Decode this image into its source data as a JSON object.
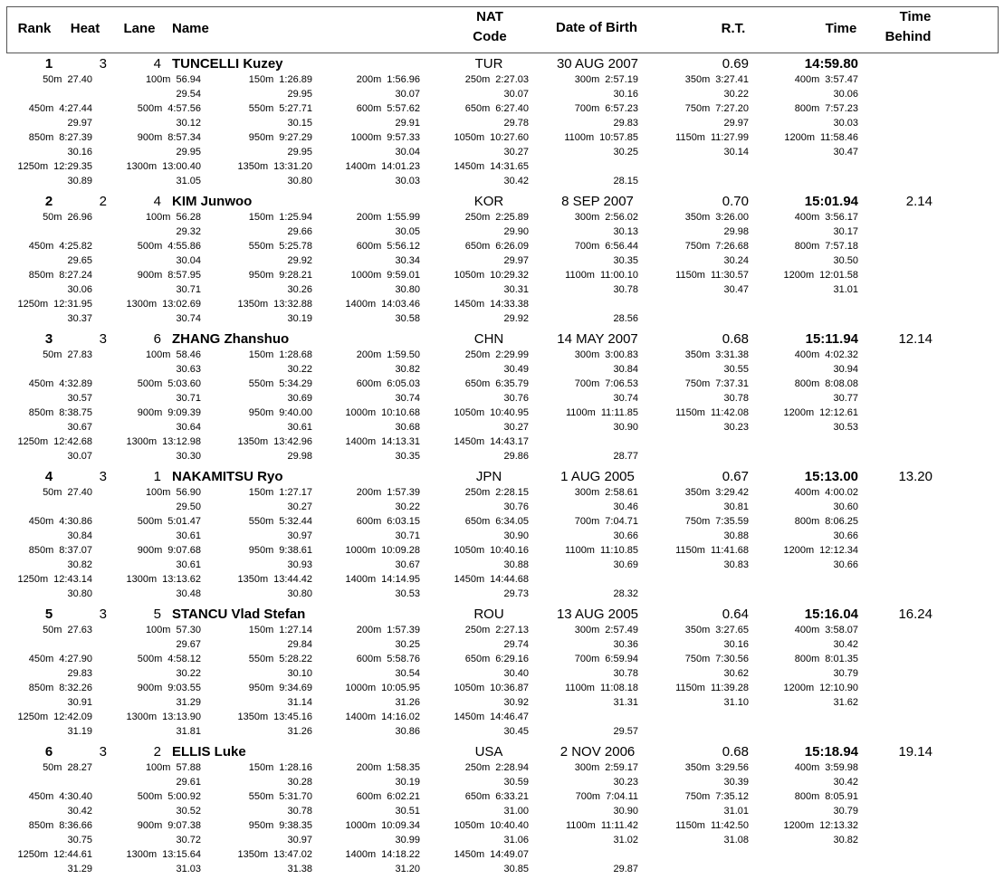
{
  "header": {
    "rank": "Rank",
    "heat": "Heat",
    "lane": "Lane",
    "name": "Name",
    "nat": [
      "NAT",
      "Code"
    ],
    "dob": "Date of Birth",
    "rt": "R.T.",
    "time": "Time",
    "behind": [
      "Time",
      "Behind"
    ]
  },
  "results": [
    {
      "rank": "1",
      "heat": "3",
      "lane": "4",
      "name": "TUNCELLI Kuzey",
      "nat": "TUR",
      "dob": "30 AUG 2007",
      "rt": "0.69",
      "time": "14:59.80",
      "splits": [
        [
          "50m",
          "27.40"
        ],
        [
          "100m",
          "56.94",
          "29.54"
        ],
        [
          "150m",
          "1:26.89",
          "29.95"
        ],
        [
          "200m",
          "1:56.96",
          "30.07"
        ],
        [
          "250m",
          "2:27.03",
          "30.07"
        ],
        [
          "300m",
          "2:57.19",
          "30.16"
        ],
        [
          "350m",
          "3:27.41",
          "30.22"
        ],
        [
          "400m",
          "3:57.47",
          "30.06"
        ],
        [
          "450m",
          "4:27.44",
          "29.97"
        ],
        [
          "500m",
          "4:57.56",
          "30.12"
        ],
        [
          "550m",
          "5:27.71",
          "30.15"
        ],
        [
          "600m",
          "5:57.62",
          "29.91"
        ],
        [
          "650m",
          "6:27.40",
          "29.78"
        ],
        [
          "700m",
          "6:57.23",
          "29.83"
        ],
        [
          "750m",
          "7:27.20",
          "29.97"
        ],
        [
          "800m",
          "7:57.23",
          "30.03"
        ],
        [
          "850m",
          "8:27.39",
          "30.16"
        ],
        [
          "900m",
          "8:57.34",
          "29.95"
        ],
        [
          "950m",
          "9:27.29",
          "29.95"
        ],
        [
          "1000m",
          "9:57.33",
          "30.04"
        ],
        [
          "1050m",
          "10:27.60",
          "30.27"
        ],
        [
          "1100m",
          "10:57.85",
          "30.25"
        ],
        [
          "1150m",
          "11:27.99",
          "30.14"
        ],
        [
          "1200m",
          "11:58.46",
          "30.47"
        ],
        [
          "1250m",
          "12:29.35",
          "30.89"
        ],
        [
          "1300m",
          "13:00.40",
          "31.05"
        ],
        [
          "1350m",
          "13:31.20",
          "30.80"
        ],
        [
          "1400m",
          "14:01.23",
          "30.03"
        ],
        [
          "1450m",
          "14:31.65",
          "30.42"
        ]
      ],
      "final_split": "28.15"
    },
    {
      "rank": "2",
      "heat": "2",
      "lane": "4",
      "name": "KIM Junwoo",
      "nat": "KOR",
      "dob": "8 SEP 2007",
      "rt": "0.70",
      "time": "15:01.94",
      "behind": "2.14",
      "splits": [
        [
          "50m",
          "26.96"
        ],
        [
          "100m",
          "56.28",
          "29.32"
        ],
        [
          "150m",
          "1:25.94",
          "29.66"
        ],
        [
          "200m",
          "1:55.99",
          "30.05"
        ],
        [
          "250m",
          "2:25.89",
          "29.90"
        ],
        [
          "300m",
          "2:56.02",
          "30.13"
        ],
        [
          "350m",
          "3:26.00",
          "29.98"
        ],
        [
          "400m",
          "3:56.17",
          "30.17"
        ],
        [
          "450m",
          "4:25.82",
          "29.65"
        ],
        [
          "500m",
          "4:55.86",
          "30.04"
        ],
        [
          "550m",
          "5:25.78",
          "29.92"
        ],
        [
          "600m",
          "5:56.12",
          "30.34"
        ],
        [
          "650m",
          "6:26.09",
          "29.97"
        ],
        [
          "700m",
          "6:56.44",
          "30.35"
        ],
        [
          "750m",
          "7:26.68",
          "30.24"
        ],
        [
          "800m",
          "7:57.18",
          "30.50"
        ],
        [
          "850m",
          "8:27.24",
          "30.06"
        ],
        [
          "900m",
          "8:57.95",
          "30.71"
        ],
        [
          "950m",
          "9:28.21",
          "30.26"
        ],
        [
          "1000m",
          "9:59.01",
          "30.80"
        ],
        [
          "1050m",
          "10:29.32",
          "30.31"
        ],
        [
          "1100m",
          "11:00.10",
          "30.78"
        ],
        [
          "1150m",
          "11:30.57",
          "30.47"
        ],
        [
          "1200m",
          "12:01.58",
          "31.01"
        ],
        [
          "1250m",
          "12:31.95",
          "30.37"
        ],
        [
          "1300m",
          "13:02.69",
          "30.74"
        ],
        [
          "1350m",
          "13:32.88",
          "30.19"
        ],
        [
          "1400m",
          "14:03.46",
          "30.58"
        ],
        [
          "1450m",
          "14:33.38",
          "29.92"
        ]
      ],
      "final_split": "28.56"
    },
    {
      "rank": "3",
      "heat": "3",
      "lane": "6",
      "name": "ZHANG Zhanshuo",
      "nat": "CHN",
      "dob": "14 MAY 2007",
      "rt": "0.68",
      "time": "15:11.94",
      "behind": "12.14",
      "splits": [
        [
          "50m",
          "27.83"
        ],
        [
          "100m",
          "58.46",
          "30.63"
        ],
        [
          "150m",
          "1:28.68",
          "30.22"
        ],
        [
          "200m",
          "1:59.50",
          "30.82"
        ],
        [
          "250m",
          "2:29.99",
          "30.49"
        ],
        [
          "300m",
          "3:00.83",
          "30.84"
        ],
        [
          "350m",
          "3:31.38",
          "30.55"
        ],
        [
          "400m",
          "4:02.32",
          "30.94"
        ],
        [
          "450m",
          "4:32.89",
          "30.57"
        ],
        [
          "500m",
          "5:03.60",
          "30.71"
        ],
        [
          "550m",
          "5:34.29",
          "30.69"
        ],
        [
          "600m",
          "6:05.03",
          "30.74"
        ],
        [
          "650m",
          "6:35.79",
          "30.76"
        ],
        [
          "700m",
          "7:06.53",
          "30.74"
        ],
        [
          "750m",
          "7:37.31",
          "30.78"
        ],
        [
          "800m",
          "8:08.08",
          "30.77"
        ],
        [
          "850m",
          "8:38.75",
          "30.67"
        ],
        [
          "900m",
          "9:09.39",
          "30.64"
        ],
        [
          "950m",
          "9:40.00",
          "30.61"
        ],
        [
          "1000m",
          "10:10.68",
          "30.68"
        ],
        [
          "1050m",
          "10:40.95",
          "30.27"
        ],
        [
          "1100m",
          "11:11.85",
          "30.90"
        ],
        [
          "1150m",
          "11:42.08",
          "30.23"
        ],
        [
          "1200m",
          "12:12.61",
          "30.53"
        ],
        [
          "1250m",
          "12:42.68",
          "30.07"
        ],
        [
          "1300m",
          "13:12.98",
          "30.30"
        ],
        [
          "1350m",
          "13:42.96",
          "29.98"
        ],
        [
          "1400m",
          "14:13.31",
          "30.35"
        ],
        [
          "1450m",
          "14:43.17",
          "29.86"
        ]
      ],
      "final_split": "28.77"
    },
    {
      "rank": "4",
      "heat": "3",
      "lane": "1",
      "name": "NAKAMITSU Ryo",
      "nat": "JPN",
      "dob": "1 AUG 2005",
      "rt": "0.67",
      "time": "15:13.00",
      "behind": "13.20",
      "splits": [
        [
          "50m",
          "27.40"
        ],
        [
          "100m",
          "56.90",
          "29.50"
        ],
        [
          "150m",
          "1:27.17",
          "30.27"
        ],
        [
          "200m",
          "1:57.39",
          "30.22"
        ],
        [
          "250m",
          "2:28.15",
          "30.76"
        ],
        [
          "300m",
          "2:58.61",
          "30.46"
        ],
        [
          "350m",
          "3:29.42",
          "30.81"
        ],
        [
          "400m",
          "4:00.02",
          "30.60"
        ],
        [
          "450m",
          "4:30.86",
          "30.84"
        ],
        [
          "500m",
          "5:01.47",
          "30.61"
        ],
        [
          "550m",
          "5:32.44",
          "30.97"
        ],
        [
          "600m",
          "6:03.15",
          "30.71"
        ],
        [
          "650m",
          "6:34.05",
          "30.90"
        ],
        [
          "700m",
          "7:04.71",
          "30.66"
        ],
        [
          "750m",
          "7:35.59",
          "30.88"
        ],
        [
          "800m",
          "8:06.25",
          "30.66"
        ],
        [
          "850m",
          "8:37.07",
          "30.82"
        ],
        [
          "900m",
          "9:07.68",
          "30.61"
        ],
        [
          "950m",
          "9:38.61",
          "30.93"
        ],
        [
          "1000m",
          "10:09.28",
          "30.67"
        ],
        [
          "1050m",
          "10:40.16",
          "30.88"
        ],
        [
          "1100m",
          "11:10.85",
          "30.69"
        ],
        [
          "1150m",
          "11:41.68",
          "30.83"
        ],
        [
          "1200m",
          "12:12.34",
          "30.66"
        ],
        [
          "1250m",
          "12:43.14",
          "30.80"
        ],
        [
          "1300m",
          "13:13.62",
          "30.48"
        ],
        [
          "1350m",
          "13:44.42",
          "30.80"
        ],
        [
          "1400m",
          "14:14.95",
          "30.53"
        ],
        [
          "1450m",
          "14:44.68",
          "29.73"
        ]
      ],
      "final_split": "28.32"
    },
    {
      "rank": "5",
      "heat": "3",
      "lane": "5",
      "name": "STANCU Vlad Stefan",
      "nat": "ROU",
      "dob": "13 AUG 2005",
      "rt": "0.64",
      "time": "15:16.04",
      "behind": "16.24",
      "splits": [
        [
          "50m",
          "27.63"
        ],
        [
          "100m",
          "57.30",
          "29.67"
        ],
        [
          "150m",
          "1:27.14",
          "29.84"
        ],
        [
          "200m",
          "1:57.39",
          "30.25"
        ],
        [
          "250m",
          "2:27.13",
          "29.74"
        ],
        [
          "300m",
          "2:57.49",
          "30.36"
        ],
        [
          "350m",
          "3:27.65",
          "30.16"
        ],
        [
          "400m",
          "3:58.07",
          "30.42"
        ],
        [
          "450m",
          "4:27.90",
          "29.83"
        ],
        [
          "500m",
          "4:58.12",
          "30.22"
        ],
        [
          "550m",
          "5:28.22",
          "30.10"
        ],
        [
          "600m",
          "5:58.76",
          "30.54"
        ],
        [
          "650m",
          "6:29.16",
          "30.40"
        ],
        [
          "700m",
          "6:59.94",
          "30.78"
        ],
        [
          "750m",
          "7:30.56",
          "30.62"
        ],
        [
          "800m",
          "8:01.35",
          "30.79"
        ],
        [
          "850m",
          "8:32.26",
          "30.91"
        ],
        [
          "900m",
          "9:03.55",
          "31.29"
        ],
        [
          "950m",
          "9:34.69",
          "31.14"
        ],
        [
          "1000m",
          "10:05.95",
          "31.26"
        ],
        [
          "1050m",
          "10:36.87",
          "30.92"
        ],
        [
          "1100m",
          "11:08.18",
          "31.31"
        ],
        [
          "1150m",
          "11:39.28",
          "31.10"
        ],
        [
          "1200m",
          "12:10.90",
          "31.62"
        ],
        [
          "1250m",
          "12:42.09",
          "31.19"
        ],
        [
          "1300m",
          "13:13.90",
          "31.81"
        ],
        [
          "1350m",
          "13:45.16",
          "31.26"
        ],
        [
          "1400m",
          "14:16.02",
          "30.86"
        ],
        [
          "1450m",
          "14:46.47",
          "30.45"
        ]
      ],
      "final_split": "29.57"
    },
    {
      "rank": "6",
      "heat": "3",
      "lane": "2",
      "name": "ELLIS Luke",
      "nat": "USA",
      "dob": "2 NOV 2006",
      "rt": "0.68",
      "time": "15:18.94",
      "behind": "19.14",
      "splits": [
        [
          "50m",
          "28.27"
        ],
        [
          "100m",
          "57.88",
          "29.61"
        ],
        [
          "150m",
          "1:28.16",
          "30.28"
        ],
        [
          "200m",
          "1:58.35",
          "30.19"
        ],
        [
          "250m",
          "2:28.94",
          "30.59"
        ],
        [
          "300m",
          "2:59.17",
          "30.23"
        ],
        [
          "350m",
          "3:29.56",
          "30.39"
        ],
        [
          "400m",
          "3:59.98",
          "30.42"
        ],
        [
          "450m",
          "4:30.40",
          "30.42"
        ],
        [
          "500m",
          "5:00.92",
          "30.52"
        ],
        [
          "550m",
          "5:31.70",
          "30.78"
        ],
        [
          "600m",
          "6:02.21",
          "30.51"
        ],
        [
          "650m",
          "6:33.21",
          "31.00"
        ],
        [
          "700m",
          "7:04.11",
          "30.90"
        ],
        [
          "750m",
          "7:35.12",
          "31.01"
        ],
        [
          "800m",
          "8:05.91",
          "30.79"
        ],
        [
          "850m",
          "8:36.66",
          "30.75"
        ],
        [
          "900m",
          "9:07.38",
          "30.72"
        ],
        [
          "950m",
          "9:38.35",
          "30.97"
        ],
        [
          "1000m",
          "10:09.34",
          "30.99"
        ],
        [
          "1050m",
          "10:40.40",
          "31.06"
        ],
        [
          "1100m",
          "11:11.42",
          "31.02"
        ],
        [
          "1150m",
          "11:42.50",
          "31.08"
        ],
        [
          "1200m",
          "12:13.32",
          "30.82"
        ],
        [
          "1250m",
          "12:44.61",
          "31.29"
        ],
        [
          "1300m",
          "13:15.64",
          "31.03"
        ],
        [
          "1350m",
          "13:47.02",
          "31.38"
        ],
        [
          "1400m",
          "14:18.22",
          "31.20"
        ],
        [
          "1450m",
          "14:49.07",
          "30.85"
        ]
      ],
      "final_split": "29.87"
    }
  ]
}
